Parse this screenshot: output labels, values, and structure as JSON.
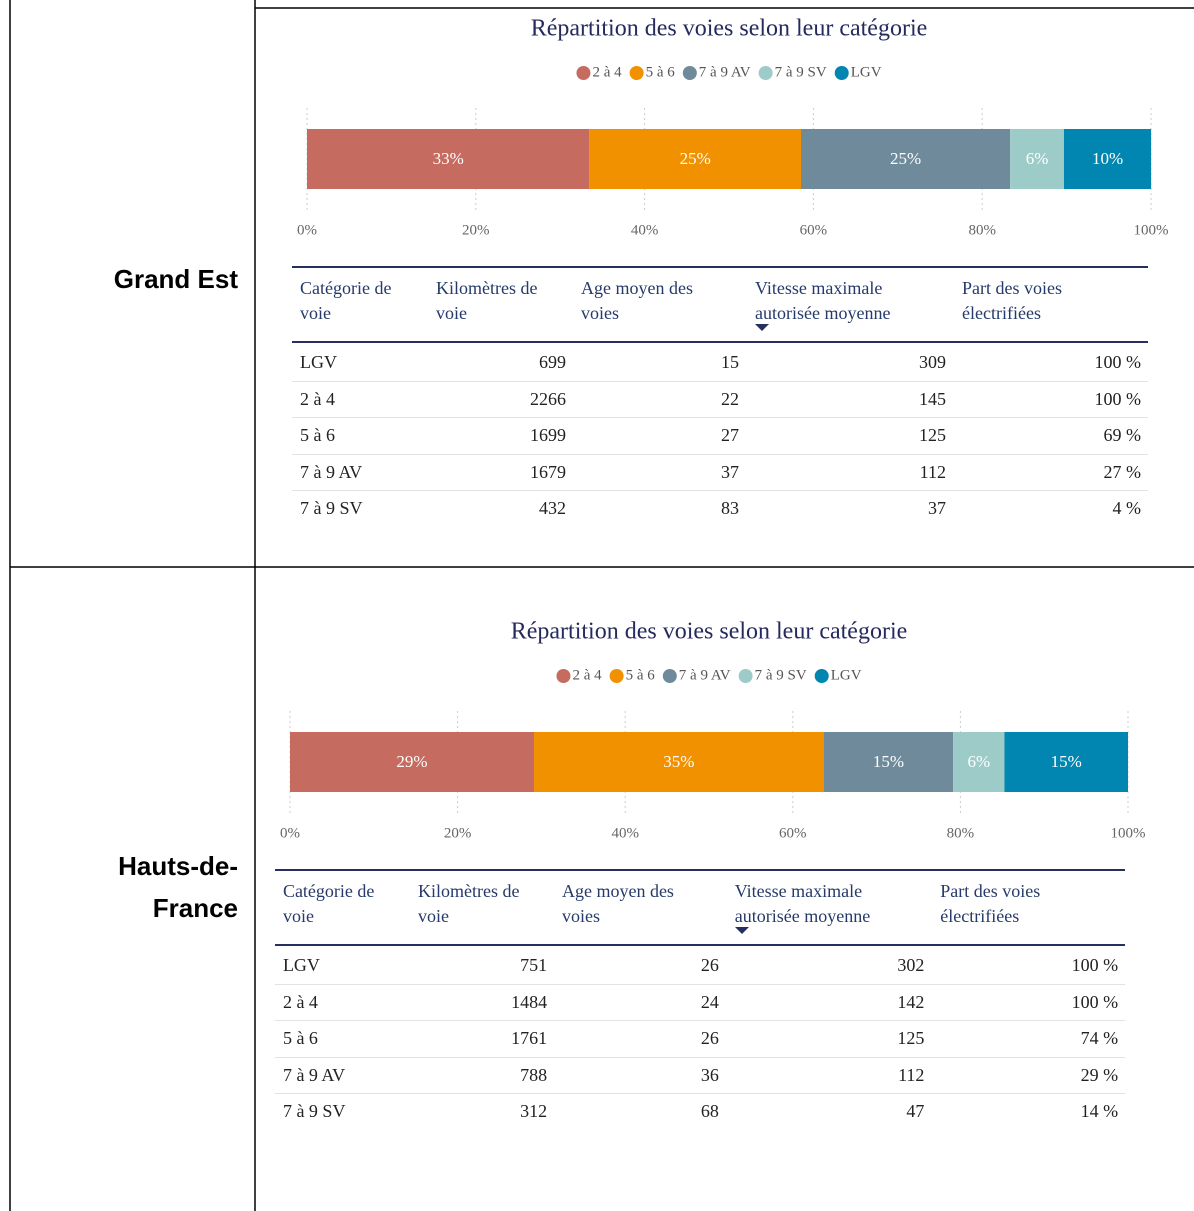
{
  "regions": [
    "Grand Est",
    "Hauts-de-France"
  ],
  "chart_data": [
    {
      "type": "bar",
      "stacked": true,
      "orientation": "horizontal",
      "legend": "top",
      "grid": true,
      "title": "Répartition des voies selon leur catégorie",
      "xlim": [
        0,
        100
      ],
      "xticks": [
        {
          "value": 0,
          "label": "0%"
        },
        {
          "value": 20,
          "label": "20%"
        },
        {
          "value": 40,
          "label": "40%"
        },
        {
          "value": 60,
          "label": "60%"
        },
        {
          "value": 80,
          "label": "80%"
        },
        {
          "value": 100,
          "label": "100%"
        }
      ],
      "series": [
        {
          "name": "2 à 4",
          "color": "#c56b5f",
          "values": [
            33.45
          ],
          "value_labels": [
            "33%"
          ]
        },
        {
          "name": "5 à 6",
          "color": "#f29100",
          "values": [
            25.08
          ],
          "value_labels": [
            "25%"
          ]
        },
        {
          "name": "7 à 9 AV",
          "color": "#6e8a9b",
          "values": [
            24.78
          ],
          "value_labels": [
            "25%"
          ]
        },
        {
          "name": "7 à 9 SV",
          "color": "#9ccbc8",
          "values": [
            6.38
          ],
          "value_labels": [
            "6%"
          ]
        },
        {
          "name": "LGV",
          "color": "#0086b0",
          "values": [
            10.32
          ],
          "value_labels": [
            "10%"
          ]
        }
      ]
    },
    {
      "type": "bar",
      "stacked": true,
      "orientation": "horizontal",
      "legend": "top",
      "grid": true,
      "title": "Répartition des voies selon leur catégorie",
      "xlim": [
        0,
        100
      ],
      "xticks": [
        {
          "value": 0,
          "label": "0%"
        },
        {
          "value": 20,
          "label": "20%"
        },
        {
          "value": 40,
          "label": "40%"
        },
        {
          "value": 60,
          "label": "60%"
        },
        {
          "value": 80,
          "label": "80%"
        },
        {
          "value": 100,
          "label": "100%"
        }
      ],
      "series": [
        {
          "name": "2 à 4",
          "color": "#c56b5f",
          "values": [
            29.12
          ],
          "value_labels": [
            "29%"
          ]
        },
        {
          "name": "5 à 6",
          "color": "#f29100",
          "values": [
            34.56
          ],
          "value_labels": [
            "35%"
          ]
        },
        {
          "name": "7 à 9 AV",
          "color": "#6e8a9b",
          "values": [
            15.46
          ],
          "value_labels": [
            "15%"
          ]
        },
        {
          "name": "7 à 9 SV",
          "color": "#9ccbc8",
          "values": [
            6.12
          ],
          "value_labels": [
            "6%"
          ]
        },
        {
          "name": "LGV",
          "color": "#0086b0",
          "values": [
            14.74
          ],
          "value_labels": [
            "15%"
          ]
        }
      ]
    }
  ],
  "tables": [
    {
      "columns": [
        "Catégorie de voie",
        "Kilomètres de voie",
        "Age moyen des voies",
        "Vitesse maximale autorisée moyenne",
        "Part des voies électrifiées"
      ],
      "rows": [
        [
          "LGV",
          "699",
          "15",
          "309",
          "100 %"
        ],
        [
          "2 à 4",
          "2266",
          "22",
          "145",
          "100 %"
        ],
        [
          "5 à 6",
          "1699",
          "27",
          "125",
          "69 %"
        ],
        [
          "7 à 9 AV",
          "1679",
          "37",
          "112",
          "27 %"
        ],
        [
          "7 à 9 SV",
          "432",
          "83",
          "37",
          "4 %"
        ]
      ]
    },
    {
      "columns": [
        "Catégorie de voie",
        "Kilomètres de voie",
        "Age moyen des voies",
        "Vitesse maximale autorisée moyenne",
        "Part des voies électrifiées"
      ],
      "rows": [
        [
          "LGV",
          "751",
          "26",
          "302",
          "100 %"
        ],
        [
          "2 à 4",
          "1484",
          "24",
          "142",
          "100 %"
        ],
        [
          "5 à 6",
          "1761",
          "26",
          "125",
          "74 %"
        ],
        [
          "7 à 9 AV",
          "788",
          "36",
          "112",
          "29 %"
        ],
        [
          "7 à 9 SV",
          "312",
          "68",
          "47",
          "14 %"
        ]
      ]
    }
  ]
}
